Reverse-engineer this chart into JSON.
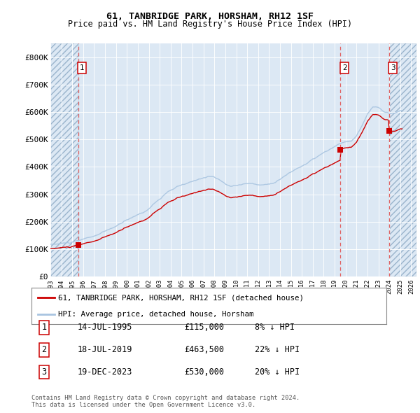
{
  "title1": "61, TANBRIDGE PARK, HORSHAM, RH12 1SF",
  "title2": "Price paid vs. HM Land Registry's House Price Index (HPI)",
  "ylabel_ticks": [
    "£0",
    "£100K",
    "£200K",
    "£300K",
    "£400K",
    "£500K",
    "£600K",
    "£700K",
    "£800K"
  ],
  "ytick_vals": [
    0,
    100000,
    200000,
    300000,
    400000,
    500000,
    600000,
    700000,
    800000
  ],
  "ylim": [
    0,
    850000
  ],
  "xlim_start": 1993.0,
  "xlim_end": 2026.5,
  "hpi_color": "#a8c4e0",
  "price_color": "#cc0000",
  "bg_color": "#dce8f4",
  "sale_dates": [
    1995.54,
    2019.54,
    2023.97
  ],
  "sale_prices": [
    115000,
    463500,
    530000
  ],
  "sale_labels": [
    "1",
    "2",
    "3"
  ],
  "legend_items": [
    "61, TANBRIDGE PARK, HORSHAM, RH12 1SF (detached house)",
    "HPI: Average price, detached house, Horsham"
  ],
  "table_data": [
    [
      "1",
      "14-JUL-1995",
      "£115,000",
      "8% ↓ HPI"
    ],
    [
      "2",
      "18-JUL-2019",
      "£463,500",
      "22% ↓ HPI"
    ],
    [
      "3",
      "19-DEC-2023",
      "£530,000",
      "20% ↓ HPI"
    ]
  ],
  "footer": "Contains HM Land Registry data © Crown copyright and database right 2024.\nThis data is licensed under the Open Government Licence v3.0.",
  "xtick_years": [
    1993,
    1994,
    1995,
    1996,
    1997,
    1998,
    1999,
    2000,
    2001,
    2002,
    2003,
    2004,
    2005,
    2006,
    2007,
    2008,
    2009,
    2010,
    2011,
    2012,
    2013,
    2014,
    2015,
    2016,
    2017,
    2018,
    2019,
    2020,
    2021,
    2022,
    2023,
    2024,
    2025,
    2026
  ]
}
